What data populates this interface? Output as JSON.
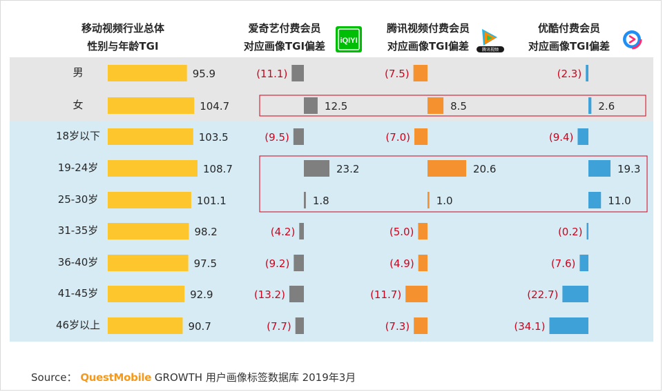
{
  "headers": {
    "industry": {
      "line1": "移动视频行业总体",
      "line2": "性别与年龄TGI"
    },
    "iqiyi": {
      "line1": "爱奇艺付费会员",
      "line2": "对应画像TGI偏差"
    },
    "tencent": {
      "line1": "腾讯视频付费会员",
      "line2": "对应画像TGI偏差"
    },
    "youku": {
      "line1": "优酷付费会员",
      "line2": "对应画像TGI偏差"
    }
  },
  "logos": {
    "iqiyi": "iQIYI",
    "tencent": "腾讯视频"
  },
  "source": {
    "prefix": "Source：",
    "brand": "QuestMobile",
    "text": "GROWTH 用户画像标签数据库 2019年3月"
  },
  "colors": {
    "overall": "#fdc62c",
    "iqiyi": "#7f7f7f",
    "tencent": "#f5912e",
    "youku": "#3ea2d8",
    "negative_text": "#d0021b",
    "gender_band": "#e6e6e6",
    "age_band": "#d6ebf4",
    "highlight_border": "#d0021b"
  },
  "chart_data": {
    "type": "bar",
    "categories": [
      "男",
      "女",
      "18岁以下",
      "19-24岁",
      "25-30岁",
      "31-35岁",
      "36-40岁",
      "41-45岁",
      "46岁以上"
    ],
    "series": [
      {
        "name": "移动视频行业总体 性别与年龄TGI",
        "values": [
          95.9,
          104.7,
          103.5,
          108.7,
          101.1,
          98.2,
          97.5,
          92.9,
          90.7
        ],
        "labels": [
          "95.9",
          "104.7",
          "103.5",
          "108.7",
          "101.1",
          "98.2",
          "97.5",
          "92.9",
          "90.7"
        ]
      },
      {
        "name": "爱奇艺付费会员 对应画像TGI偏差",
        "values": [
          -11.1,
          12.5,
          -9.5,
          23.2,
          1.8,
          -4.2,
          -9.2,
          -13.2,
          -7.7
        ],
        "labels": [
          "(11.1)",
          "12.5",
          "(9.5)",
          "23.2",
          "1.8",
          "(4.2)",
          "(9.2)",
          "(13.2)",
          "(7.7)"
        ]
      },
      {
        "name": "腾讯视频付费会员 对应画像TGI偏差",
        "values": [
          -7.5,
          8.5,
          -7.0,
          20.6,
          1.0,
          -5.0,
          -4.9,
          -11.7,
          -7.3
        ],
        "labels": [
          "(7.5)",
          "8.5",
          "(7.0)",
          "20.6",
          "1.0",
          "(5.0)",
          "(4.9)",
          "(11.7)",
          "(7.3)"
        ]
      },
      {
        "name": "优酷付费会员 对应画像TGI偏差",
        "values": [
          -2.3,
          2.6,
          -9.4,
          19.3,
          11.0,
          -0.2,
          -7.6,
          -22.7,
          -34.1
        ],
        "labels": [
          "(2.3)",
          "2.6",
          "(9.4)",
          "19.3",
          "11.0",
          "(0.2)",
          "(7.6)",
          "(22.7)",
          "(34.1)"
        ]
      }
    ],
    "groups": {
      "gender": [
        0,
        1
      ],
      "age": [
        2,
        3,
        4,
        5,
        6,
        7,
        8
      ]
    },
    "highlighted_rows": [
      [
        1
      ],
      [
        3,
        4
      ]
    ]
  }
}
